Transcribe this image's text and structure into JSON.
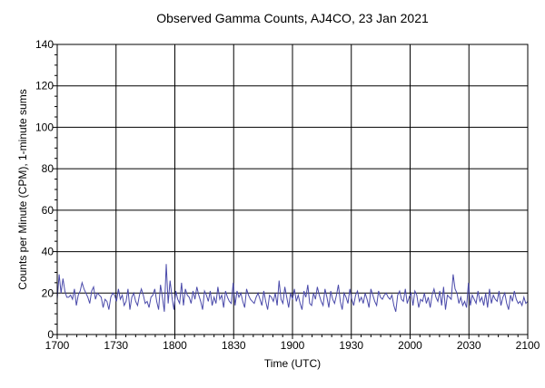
{
  "chart_data": {
    "type": "line",
    "title": "Observed Gamma Counts, AJ4CO, 23 Jan 2021",
    "xlabel": "Time (UTC)",
    "ylabel": "Counts per Minute (CPM), 1-minute sums",
    "x_tick_labels": [
      "1700",
      "1730",
      "1800",
      "1830",
      "1900",
      "1930",
      "2000",
      "2030",
      "2100"
    ],
    "y_tick_labels": [
      "0",
      "20",
      "40",
      "60",
      "80",
      "100",
      "120",
      "140"
    ],
    "xlim_minutes": [
      0,
      240
    ],
    "ylim": [
      0,
      140
    ],
    "grid": true,
    "line_color": "#4a4aaa",
    "series": [
      {
        "values": [
          17,
          29,
          20,
          27,
          21,
          18,
          18,
          19,
          17,
          22,
          14,
          19,
          21,
          25,
          22,
          20,
          18,
          15,
          21,
          23,
          17,
          20,
          19,
          18,
          13,
          17,
          16,
          12,
          18,
          20,
          19,
          16,
          22,
          17,
          19,
          14,
          16,
          22,
          12,
          18,
          20,
          16,
          14,
          19,
          22,
          19,
          15,
          16,
          13,
          18,
          19,
          22,
          16,
          12,
          24,
          18,
          11,
          34,
          15,
          26,
          18,
          12,
          21,
          17,
          15,
          25,
          14,
          22,
          19,
          18,
          15,
          21,
          17,
          23,
          19,
          16,
          12,
          21,
          19,
          16,
          21,
          14,
          18,
          15,
          23,
          17,
          19,
          13,
          21,
          18,
          16,
          15,
          25,
          14,
          21,
          18,
          20,
          16,
          13,
          22,
          19,
          17,
          16,
          15,
          18,
          20,
          17,
          14,
          21,
          16,
          12,
          19,
          18,
          16,
          20,
          14,
          26,
          17,
          15,
          23,
          18,
          13,
          20,
          17,
          22,
          16,
          19,
          15,
          12,
          21,
          18,
          24,
          15,
          14,
          20,
          17,
          23,
          19,
          16,
          14,
          22,
          18,
          13,
          21,
          17,
          15,
          19,
          24,
          16,
          12,
          20,
          18,
          15,
          22,
          17,
          14,
          19,
          21,
          16,
          18,
          15,
          20,
          17,
          13,
          22,
          19,
          16,
          14,
          21,
          18,
          17,
          19,
          20,
          18,
          17,
          19,
          14,
          11,
          19,
          21,
          17,
          16,
          22,
          15,
          18,
          20,
          14,
          21,
          19,
          13,
          17,
          16,
          20,
          15,
          18,
          13,
          19,
          22,
          18,
          16,
          21,
          14,
          23,
          12,
          19,
          18,
          17,
          29,
          22,
          20,
          15,
          18,
          14,
          16,
          13,
          25,
          14,
          19,
          17,
          15,
          21,
          16,
          18,
          14,
          20,
          13,
          22,
          15,
          19,
          17,
          16,
          21,
          14,
          18,
          20,
          15,
          12,
          19,
          16,
          21,
          17,
          15,
          16,
          14,
          18,
          15,
          16
        ]
      }
    ]
  }
}
